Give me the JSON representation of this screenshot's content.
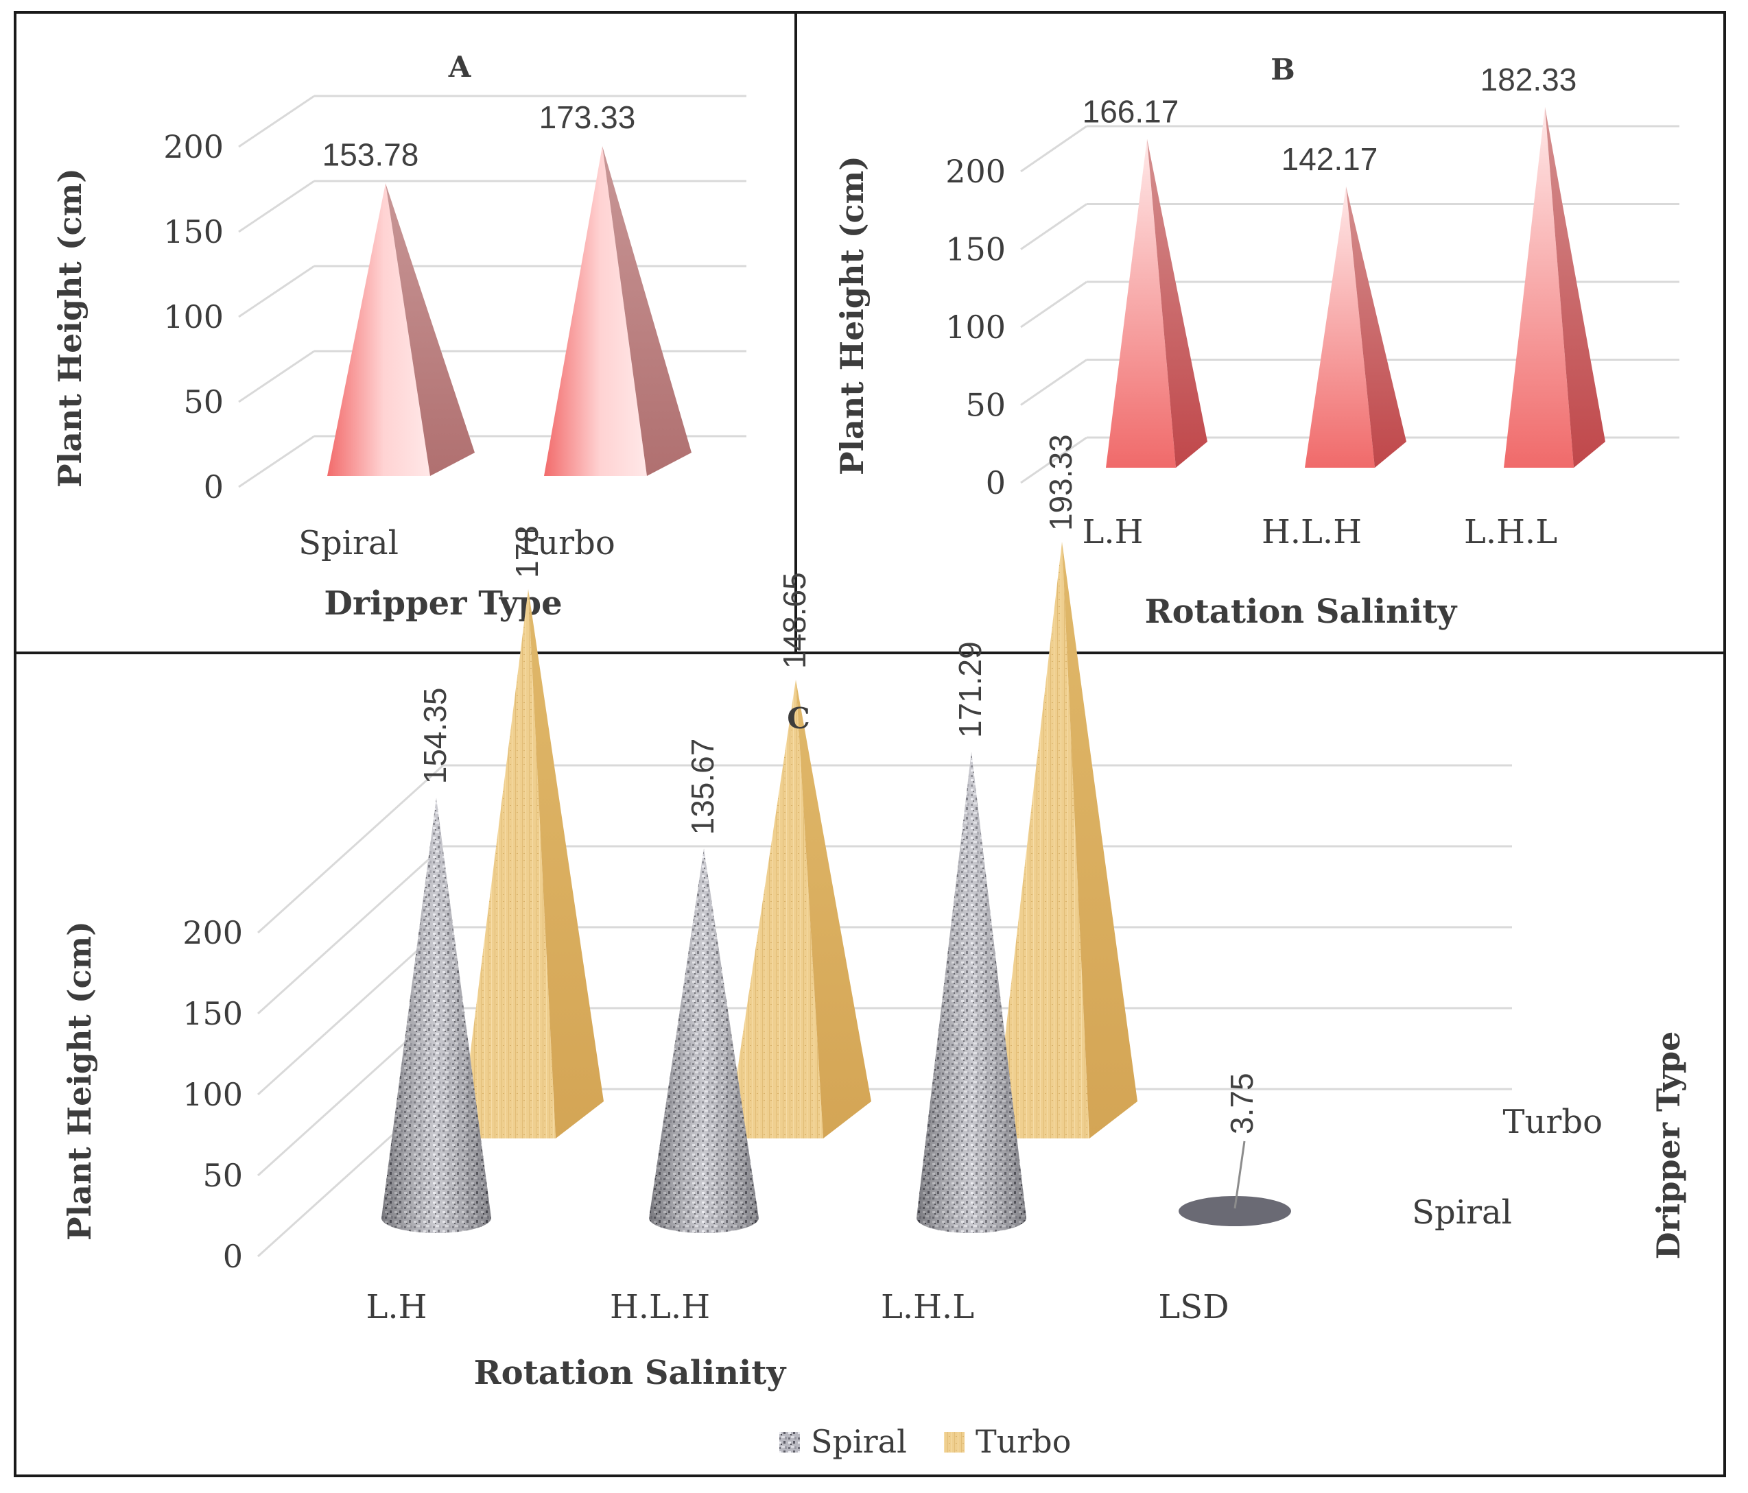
{
  "chart_data": [
    {
      "panel": "A",
      "type": "bar",
      "title": "A",
      "xlabel": "Dripper Type",
      "ylabel": "Plant Height (cm)",
      "categories": [
        "Spiral",
        "Turbo"
      ],
      "values": [
        153.78,
        173.33
      ],
      "value_labels": [
        "153.78",
        "173.33"
      ],
      "yticks": [
        "0",
        "50",
        "100",
        "150",
        "200"
      ],
      "ylim": [
        0,
        200
      ],
      "color": "#f08080"
    },
    {
      "panel": "B",
      "type": "bar",
      "title": "B",
      "xlabel": "Rotation Salinity",
      "ylabel": "Plant Height (cm)",
      "categories": [
        "L.H",
        "H.L.H",
        "L.H.L"
      ],
      "values": [
        166.17,
        142.17,
        182.33
      ],
      "value_labels": [
        "166.17",
        "142.17",
        "182.33"
      ],
      "yticks": [
        "0",
        "50",
        "100",
        "150",
        "200"
      ],
      "ylim": [
        0,
        200
      ],
      "color": "#f08080"
    },
    {
      "panel": "C",
      "type": "bar",
      "title": "C",
      "xlabel": "Rotation Salinity",
      "ylabel": "Plant Height (cm)",
      "zlabel": "Dripper Type",
      "categories": [
        "L.H",
        "H.L.H",
        "L.H.L",
        "LSD"
      ],
      "series": [
        {
          "name": "Spiral",
          "values": [
            154.35,
            135.67,
            171.29,
            3.75
          ],
          "labels": [
            "154.35",
            "135.67",
            "171.29",
            "3.75"
          ],
          "color": "#a0a0a8"
        },
        {
          "name": "Turbo",
          "values": [
            178,
            148.65,
            193.33,
            null
          ],
          "labels": [
            "178",
            "148.65",
            "193.33",
            ""
          ],
          "color": "#e8c27a"
        }
      ],
      "depth_labels": [
        "Turbo",
        "Spiral"
      ],
      "yticks": [
        "0",
        "50",
        "100",
        "150",
        "200"
      ],
      "ylim": [
        0,
        200
      ],
      "legend": [
        "Spiral",
        "Turbo"
      ]
    }
  ]
}
